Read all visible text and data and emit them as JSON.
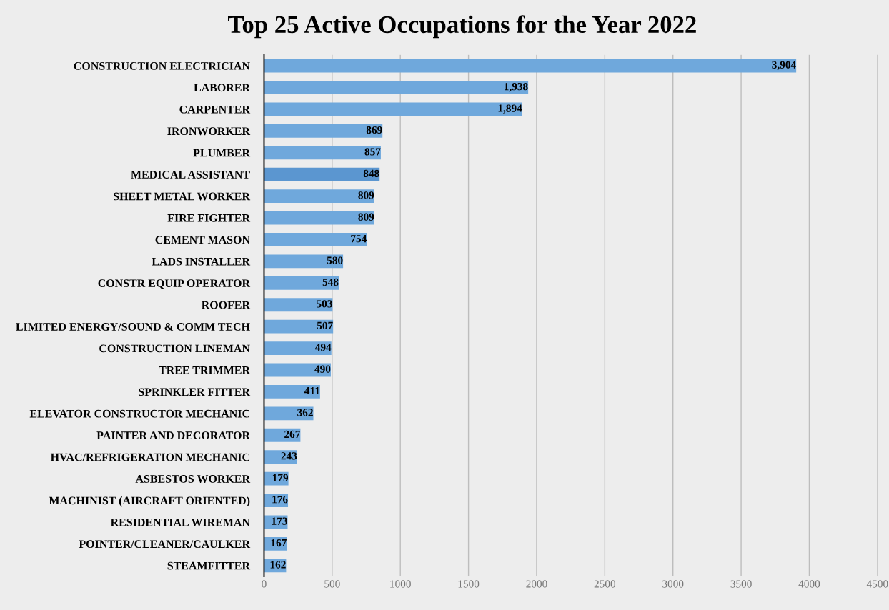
{
  "chart_data": {
    "type": "bar",
    "orientation": "horizontal",
    "title": "Top 25 Active Occupations for the Year 2022",
    "categories": [
      "CONSTRUCTION ELECTRICIAN",
      "LABORER",
      "CARPENTER",
      "IRONWORKER",
      "PLUMBER",
      "MEDICAL ASSISTANT",
      "SHEET METAL WORKER",
      "FIRE FIGHTER",
      "CEMENT MASON",
      "LADS INSTALLER",
      "CONSTR EQUIP OPERATOR",
      "ROOFER",
      "LIMITED ENERGY/SOUND & COMM TECH",
      "CONSTRUCTION LINEMAN",
      "TREE TRIMMER",
      "SPRINKLER FITTER",
      "ELEVATOR CONSTRUCTOR MECHANIC",
      "PAINTER AND DECORATOR",
      "HVAC/REFRIGERATION MECHANIC",
      "ASBESTOS WORKER",
      "MACHINIST (AIRCRAFT ORIENTED)",
      "RESIDENTIAL WIREMAN",
      "POINTER/CLEANER/CAULKER",
      "STEAMFITTER"
    ],
    "values": [
      3904,
      1938,
      1894,
      869,
      857,
      848,
      809,
      809,
      754,
      580,
      548,
      503,
      507,
      494,
      490,
      411,
      362,
      267,
      243,
      179,
      176,
      173,
      167,
      162
    ],
    "value_labels": [
      "3,904",
      "1,938",
      "1,894",
      "869",
      "857",
      "848",
      "809",
      "809",
      "754",
      "580",
      "548",
      "503",
      "507",
      "494",
      "490",
      "411",
      "362",
      "267",
      "243",
      "179",
      "176",
      "173",
      "167",
      "162"
    ],
    "colors": [
      "#6fa8dc",
      "#6fa8dc",
      "#6fa8dc",
      "#6fa8dc",
      "#6fa8dc",
      "#5b96d0",
      "#6fa8dc",
      "#6fa8dc",
      "#6fa8dc",
      "#6fa8dc",
      "#6fa8dc",
      "#6fa8dc",
      "#6fa8dc",
      "#6fa8dc",
      "#6fa8dc",
      "#6fa8dc",
      "#6fa8dc",
      "#6fa8dc",
      "#6fa8dc",
      "#6fa8dc",
      "#6fa8dc",
      "#6fa8dc",
      "#6fa8dc",
      "#6fa8dc"
    ],
    "xlim": [
      0,
      4500
    ],
    "xticks": [
      0,
      500,
      1000,
      1500,
      2000,
      2500,
      3000,
      3500,
      4000,
      4500
    ],
    "grid": "x"
  }
}
